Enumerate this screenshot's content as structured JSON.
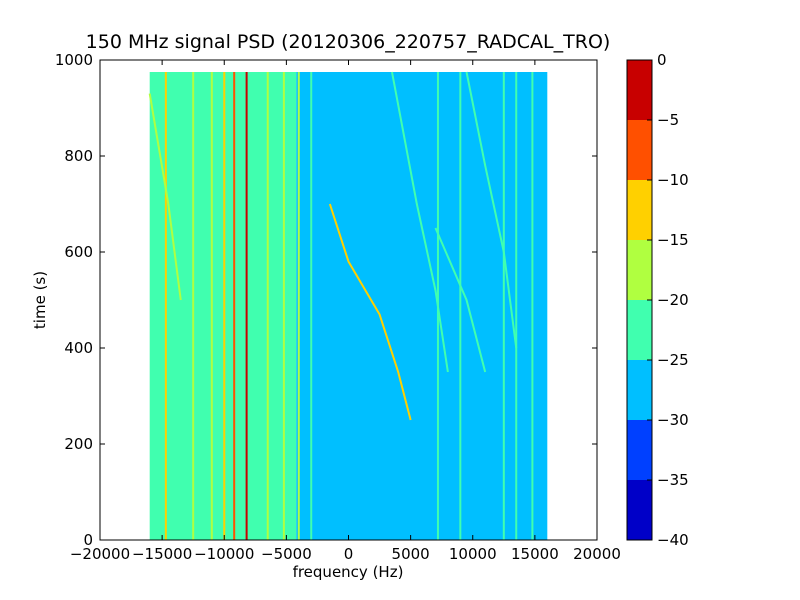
{
  "chart_data": {
    "type": "heatmap",
    "title": "150 MHz signal PSD (20120306_220757_RADCAL_TRO)",
    "xlabel": "frequency (Hz)",
    "ylabel": "time (s)",
    "xlim": [
      -20000,
      20000
    ],
    "ylim": [
      0,
      1000
    ],
    "data_extent": {
      "x": [
        -16000,
        16000
      ],
      "y": [
        0,
        975
      ]
    },
    "x_ticks": [
      {
        "value": -20000,
        "label": "−20000"
      },
      {
        "value": -15000,
        "label": "−15000"
      },
      {
        "value": -10000,
        "label": "−10000"
      },
      {
        "value": -5000,
        "label": "−5000"
      },
      {
        "value": 0,
        "label": "0"
      },
      {
        "value": 5000,
        "label": "5000"
      },
      {
        "value": 10000,
        "label": "10000"
      },
      {
        "value": 15000,
        "label": "15000"
      },
      {
        "value": 20000,
        "label": "20000"
      }
    ],
    "y_ticks": [
      {
        "value": 0,
        "label": "0"
      },
      {
        "value": 200,
        "label": "200"
      },
      {
        "value": 400,
        "label": "400"
      },
      {
        "value": 600,
        "label": "600"
      },
      {
        "value": 800,
        "label": "800"
      },
      {
        "value": 1000,
        "label": "1000"
      }
    ],
    "colorbar": {
      "levels": [
        -40,
        -35,
        -30,
        -25,
        -20,
        -15,
        -10,
        -5,
        0
      ],
      "labels": [
        "−40",
        "−35",
        "−30",
        "−25",
        "−20",
        "−15",
        "−10",
        "−5",
        "0"
      ],
      "colors": [
        "#0000c8",
        "#0040ff",
        "#00bfff",
        "#40ffaf",
        "#b0ff40",
        "#ffd000",
        "#ff5000",
        "#c80000"
      ]
    },
    "background_regions": [
      {
        "x": [
          -16000,
          -4200
        ],
        "level": -22
      },
      {
        "x": [
          -4200,
          16000
        ],
        "level": -27
      }
    ],
    "vertical_lines": [
      {
        "f": -14700,
        "level": -12
      },
      {
        "f": -12500,
        "level": -16
      },
      {
        "f": -11000,
        "level": -16
      },
      {
        "f": -10000,
        "level": -12
      },
      {
        "f": -9200,
        "level": -8
      },
      {
        "f": -8200,
        "level": -2
      },
      {
        "f": -6500,
        "level": -16
      },
      {
        "f": -5200,
        "level": -18
      },
      {
        "f": -4000,
        "level": -16
      },
      {
        "f": -3000,
        "level": -20
      },
      {
        "f": 7200,
        "level": -20
      },
      {
        "f": 9000,
        "level": -20
      },
      {
        "f": 12500,
        "level": -20
      },
      {
        "f": 13500,
        "level": -20
      },
      {
        "f": 14800,
        "level": -20
      }
    ],
    "traces": [
      {
        "points": [
          [
            -1500,
            700
          ],
          [
            0,
            580
          ],
          [
            2500,
            470
          ],
          [
            4000,
            350
          ],
          [
            5000,
            250
          ]
        ],
        "level": -14
      },
      {
        "points": [
          [
            3500,
            975
          ],
          [
            5500,
            700
          ],
          [
            7000,
            520
          ],
          [
            8000,
            350
          ]
        ],
        "level": -20
      },
      {
        "points": [
          [
            9500,
            975
          ],
          [
            11000,
            780
          ],
          [
            12500,
            600
          ],
          [
            13500,
            400
          ]
        ],
        "level": -20
      },
      {
        "points": [
          [
            7000,
            650
          ],
          [
            9500,
            500
          ],
          [
            11000,
            350
          ]
        ],
        "level": -20
      },
      {
        "points": [
          [
            -16000,
            930
          ],
          [
            -14500,
            700
          ],
          [
            -13500,
            500
          ]
        ],
        "level": -18
      }
    ]
  }
}
